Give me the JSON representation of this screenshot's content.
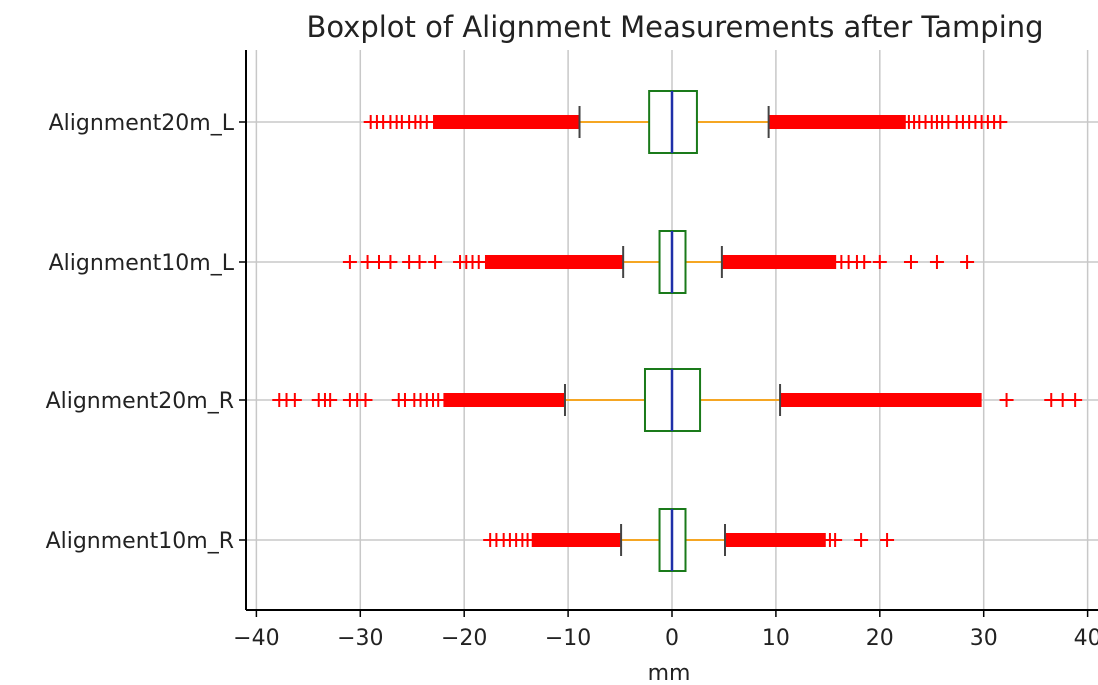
{
  "chart_data": {
    "type": "boxplot",
    "title": "Boxplot of Alignment Measurements after Tamping",
    "xlabel": "mm",
    "ylabel": "",
    "xlim": [
      -41,
      41
    ],
    "xticks": [
      -40,
      -30,
      -20,
      -10,
      0,
      10,
      20,
      30,
      40
    ],
    "xtick_labels": [
      "−40",
      "−30",
      "−20",
      "−10",
      "0",
      "10",
      "20",
      "30",
      "40"
    ],
    "grid": true,
    "categories": [
      "Alignment20m_L",
      "Alignment10m_L",
      "Alignment20m_R",
      "Alignment10m_R"
    ],
    "colors": {
      "box": "#1a7a1a",
      "median": "#1f2fa8",
      "whisker": "#f5a623",
      "cap": "#444444",
      "flier": "#ff0000",
      "grid": "#c8c8c8"
    },
    "series": [
      {
        "category": "Alignment20m_L",
        "q1": -2.2,
        "median": 0.0,
        "q3": 2.4,
        "whisker_low": -8.9,
        "whisker_high": 9.3,
        "fliers_dense_low": [
          -23.0,
          -8.9
        ],
        "fliers_dense_high": [
          9.3,
          22.5
        ],
        "fliers": [
          -29.0,
          -28.4,
          -27.8,
          -27.1,
          -26.5,
          -26.0,
          -25.3,
          -24.7,
          -24.2,
          -23.6,
          22.8,
          23.3,
          23.8,
          24.4,
          25.0,
          25.5,
          26.0,
          26.6,
          27.4,
          28.0,
          28.6,
          29.2,
          29.8,
          30.4,
          31.0,
          31.6
        ]
      },
      {
        "category": "Alignment10m_L",
        "q1": -1.2,
        "median": 0.0,
        "q3": 1.3,
        "whisker_low": -4.7,
        "whisker_high": 4.8,
        "fliers_dense_low": [
          -18.0,
          -4.7
        ],
        "fliers_dense_high": [
          4.8,
          15.8
        ],
        "fliers": [
          -31.0,
          -29.3,
          -28.2,
          -27.1,
          -25.3,
          -24.3,
          -22.8,
          -20.4,
          -19.8,
          -19.2,
          -18.6,
          16.3,
          17.0,
          17.8,
          18.5,
          20.0,
          23.0,
          25.5,
          28.4
        ]
      },
      {
        "category": "Alignment20m_R",
        "q1": -2.6,
        "median": 0.0,
        "q3": 2.7,
        "whisker_low": -10.3,
        "whisker_high": 10.4,
        "fliers_dense_low": [
          -22.0,
          -10.3
        ],
        "fliers_dense_high": [
          10.4,
          29.8
        ],
        "fliers": [
          -37.8,
          -37.1,
          -36.3,
          -34.0,
          -33.4,
          -32.9,
          -31.0,
          -30.3,
          -29.5,
          -26.3,
          -25.7,
          -24.8,
          -24.2,
          -23.6,
          -23.0,
          -22.5,
          32.2,
          36.5,
          37.6,
          38.8
        ]
      },
      {
        "category": "Alignment10m_R",
        "q1": -1.2,
        "median": 0.0,
        "q3": 1.3,
        "whisker_low": -4.9,
        "whisker_high": 5.1,
        "fliers_dense_low": [
          -13.5,
          -4.9
        ],
        "fliers_dense_high": [
          5.1,
          14.8
        ],
        "fliers": [
          -17.5,
          -16.9,
          -16.2,
          -15.6,
          -15.0,
          -14.4,
          -13.9,
          15.2,
          15.7,
          18.2,
          20.7
        ]
      }
    ]
  }
}
